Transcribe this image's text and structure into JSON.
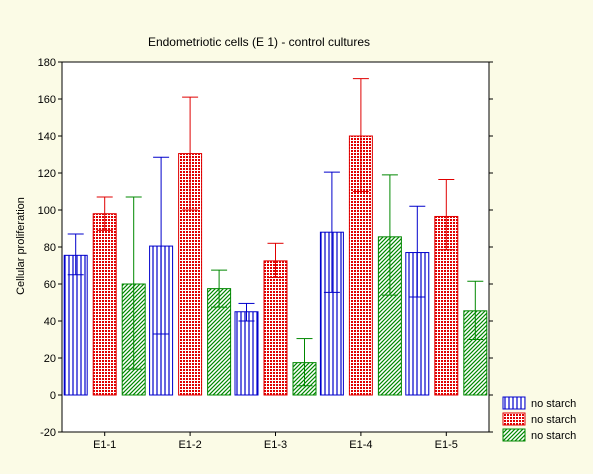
{
  "chart_data": {
    "type": "bar",
    "title": "Endometriotic cells (E 1) - control cultures",
    "xlabel": "",
    "ylabel": "Cellular proliferation",
    "ylim": [
      -20,
      180
    ],
    "yticks": [
      "-20",
      "0",
      "20",
      "40",
      "60",
      "80",
      "100",
      "120",
      "140",
      "160",
      "180"
    ],
    "grid": false,
    "legend_position": "bottom-right",
    "categories": [
      "E1-1",
      "E1-2",
      "E1-3",
      "E1-4",
      "E1-5"
    ],
    "series": [
      {
        "name": "no starch",
        "color": "#0000cc",
        "pattern": "vertical-lines",
        "values": [
          75.5,
          80.5,
          45,
          88,
          77
        ],
        "err_low": [
          65,
          33,
          40,
          55.5,
          53
        ],
        "err_high": [
          87,
          128.5,
          49.5,
          120.5,
          102
        ]
      },
      {
        "name": "no starch",
        "color": "#e00000",
        "pattern": "crosshatch",
        "values": [
          98,
          130.5,
          72.5,
          140,
          96.5
        ],
        "err_low": [
          89,
          100,
          63.5,
          110,
          78.5
        ],
        "err_high": [
          107,
          161,
          82,
          171,
          116.5
        ]
      },
      {
        "name": "no starch",
        "color": "#008800",
        "pattern": "diagonal-lines",
        "values": [
          60,
          57.5,
          17.5,
          85.5,
          45.5
        ],
        "err_low": [
          14,
          47.5,
          5,
          54,
          30
        ],
        "err_high": [
          107,
          67.5,
          30.5,
          119,
          61.5
        ]
      }
    ]
  }
}
